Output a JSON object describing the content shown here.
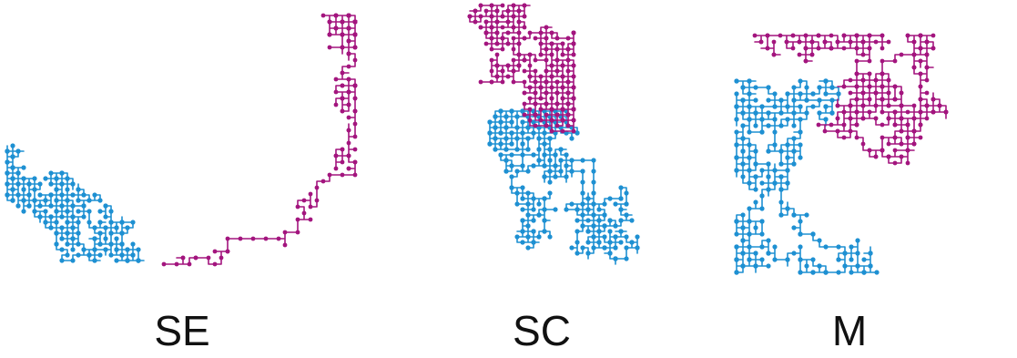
{
  "figure": {
    "colors": {
      "blue": "#1e90d2",
      "magenta": "#a3157e"
    },
    "panels": [
      {
        "id": "se",
        "label": "SE",
        "description_icon": "polymer-chain-icon"
      },
      {
        "id": "sc",
        "label": "SC",
        "description_icon": "polymer-chain-icon"
      },
      {
        "id": "m",
        "label": "M",
        "description_icon": "polymer-chain-icon"
      }
    ]
  }
}
